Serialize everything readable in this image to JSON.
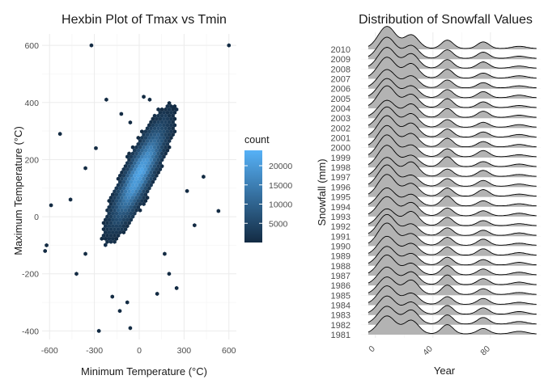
{
  "chart_data": [
    {
      "type": "heatmap",
      "subtype": "hexbin",
      "title": "Hexbin Plot of Tmax vs Tmin",
      "xlabel": "Minimum Temperature (°C)",
      "ylabel": "Maximum Temperature (°C)",
      "xlim": [
        -650,
        650
      ],
      "ylim": [
        -430,
        640
      ],
      "x_ticks": [
        -600,
        -300,
        0,
        300,
        600
      ],
      "y_ticks": [
        -400,
        -200,
        0,
        200,
        400,
        600
      ],
      "grid": true,
      "legend": {
        "title": "count",
        "placement": "right",
        "ticks": [
          5000,
          10000,
          15000,
          20000
        ],
        "range": [
          0,
          24000
        ],
        "color_low": "#132b43",
        "color_high": "#56b1f7"
      },
      "density_core": {
        "tmin_center": 0,
        "tmax_center": 150,
        "slope": 1.0
      },
      "outliers": [
        [
          -320,
          600
        ],
        [
          600,
          600
        ],
        [
          -220,
          410
        ],
        [
          30,
          420
        ],
        [
          70,
          410
        ],
        [
          -530,
          290
        ],
        [
          -290,
          240
        ],
        [
          -360,
          170
        ],
        [
          -590,
          40
        ],
        [
          -620,
          -100
        ],
        [
          -630,
          -120
        ],
        [
          530,
          20
        ],
        [
          430,
          140
        ],
        [
          -360,
          -130
        ],
        [
          -270,
          -400
        ],
        [
          -130,
          -330
        ],
        [
          -80,
          -300
        ],
        [
          -60,
          -390
        ],
        [
          -180,
          -280
        ],
        [
          200,
          -200
        ],
        [
          250,
          -250
        ],
        [
          120,
          -270
        ],
        [
          170,
          -130
        ],
        [
          370,
          -30
        ],
        [
          320,
          90
        ],
        [
          -120,
          360
        ],
        [
          -60,
          330
        ],
        [
          230,
          380
        ],
        [
          -460,
          60
        ],
        [
          -420,
          -200
        ]
      ]
    },
    {
      "type": "area",
      "subtype": "ridgeline",
      "title": "Distribution of Snowfall Values",
      "xlabel": "Year",
      "ylabel": "Snowfall (mm)",
      "x_ticks": [
        0,
        40,
        80
      ],
      "x_tick_labels": [
        "0",
        "40",
        "80"
      ],
      "xlim": [
        -10,
        115
      ],
      "years": [
        "1981",
        "1982",
        "1983",
        "1984",
        "1985",
        "1986",
        "1987",
        "1988",
        "1989",
        "1990",
        "1991",
        "1992",
        "1993",
        "1994",
        "1995",
        "1996",
        "1997",
        "1998",
        "1999",
        "2000",
        "2001",
        "2002",
        "2003",
        "2004",
        "2005",
        "2006",
        "2007",
        "2008",
        "2009",
        "2010"
      ],
      "fill_color": "#b3b3b3",
      "line_color": "#000000",
      "density_peaks": [
        {
          "x": 8,
          "height": 1.0,
          "width": 6
        },
        {
          "x": 25,
          "height": 0.65,
          "width": 5
        },
        {
          "x": 50,
          "height": 0.45,
          "width": 4
        },
        {
          "x": 75,
          "height": 0.3,
          "width": 4
        },
        {
          "x": 100,
          "height": 0.12,
          "width": 5
        }
      ]
    }
  ]
}
